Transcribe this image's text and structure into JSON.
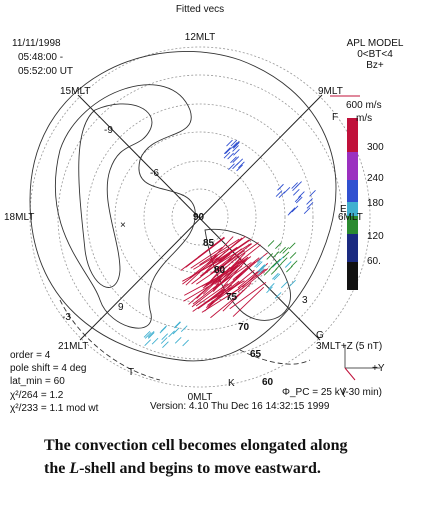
{
  "figure": {
    "title": "Fitted vecs",
    "date": "11/11/1998",
    "time_start": "05:48:00 -",
    "time_end": "05:52:00 UT",
    "model": [
      "APL MODEL",
      "0<BT<4",
      "Bz+"
    ],
    "velocity_ref": "600 m/s",
    "colorbar": {
      "unit": "m/s",
      "ticks": [
        "300",
        "240",
        "180",
        "120",
        "60."
      ]
    },
    "mlt_labels": [
      "12MLT",
      "15MLT",
      "9MLT",
      "18MLT",
      "6MLT",
      "21MLT",
      "3MLT+Z (5 nT)",
      "0MLT"
    ],
    "center_label": "90",
    "lat_labels": [
      "85",
      "80",
      "75",
      "70",
      "65",
      "60"
    ],
    "contour_labels": [
      "-9",
      "9",
      "3",
      "-3",
      "-6"
    ],
    "station_labels": [
      "F",
      "E",
      "G",
      "T",
      "K"
    ],
    "params": [
      "order = 4",
      "pole shift = 4 deg",
      "lat_min = 60",
      "χ²/264 = 1.2",
      "χ²/233 = 1.1  mod wt"
    ],
    "potential": "Φ_PC = 25 kV",
    "imf": [
      "+Y",
      "(-30 min)"
    ],
    "version": "Version: 4.10  Thu Dec 16 14:32:15 1999"
  },
  "caption": {
    "line1": "The convection cell becomes elongated along",
    "line2_start": "the ",
    "line2_italic": "L",
    "line2_end": "-shell and begins to move eastward."
  }
}
